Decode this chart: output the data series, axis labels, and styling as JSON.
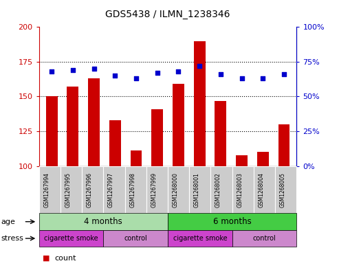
{
  "title": "GDS5438 / ILMN_1238346",
  "samples": [
    "GSM1267994",
    "GSM1267995",
    "GSM1267996",
    "GSM1267997",
    "GSM1267998",
    "GSM1267999",
    "GSM1268000",
    "GSM1268001",
    "GSM1268002",
    "GSM1268003",
    "GSM1268004",
    "GSM1268005"
  ],
  "counts": [
    150,
    157,
    163,
    133,
    111,
    141,
    159,
    190,
    147,
    108,
    110,
    130
  ],
  "percentiles": [
    68,
    69,
    70,
    65,
    63,
    67,
    68,
    72,
    66,
    63,
    63,
    66
  ],
  "count_baseline": 100,
  "left_ylim": [
    100,
    200
  ],
  "left_yticks": [
    100,
    125,
    150,
    175,
    200
  ],
  "right_ylim": [
    0,
    100
  ],
  "right_yticks": [
    0,
    25,
    50,
    75,
    100
  ],
  "right_yticklabels": [
    "0%",
    "25%",
    "50%",
    "75%",
    "100%"
  ],
  "bar_color": "#cc0000",
  "dot_color": "#0000cc",
  "age_groups": [
    {
      "label": "4 months",
      "start": 0,
      "end": 6,
      "color": "#aaddaa"
    },
    {
      "label": "6 months",
      "start": 6,
      "end": 12,
      "color": "#44cc44"
    }
  ],
  "stress_groups": [
    {
      "label": "cigarette smoke",
      "start": 0,
      "end": 3,
      "color": "#cc44cc"
    },
    {
      "label": "control",
      "start": 3,
      "end": 6,
      "color": "#cc88cc"
    },
    {
      "label": "cigarette smoke",
      "start": 6,
      "end": 9,
      "color": "#cc44cc"
    },
    {
      "label": "control",
      "start": 9,
      "end": 12,
      "color": "#cc88cc"
    }
  ],
  "sample_box_color": "#cccccc",
  "background_color": "#ffffff",
  "tick_label_color_left": "#cc0000",
  "tick_label_color_right": "#0000cc"
}
